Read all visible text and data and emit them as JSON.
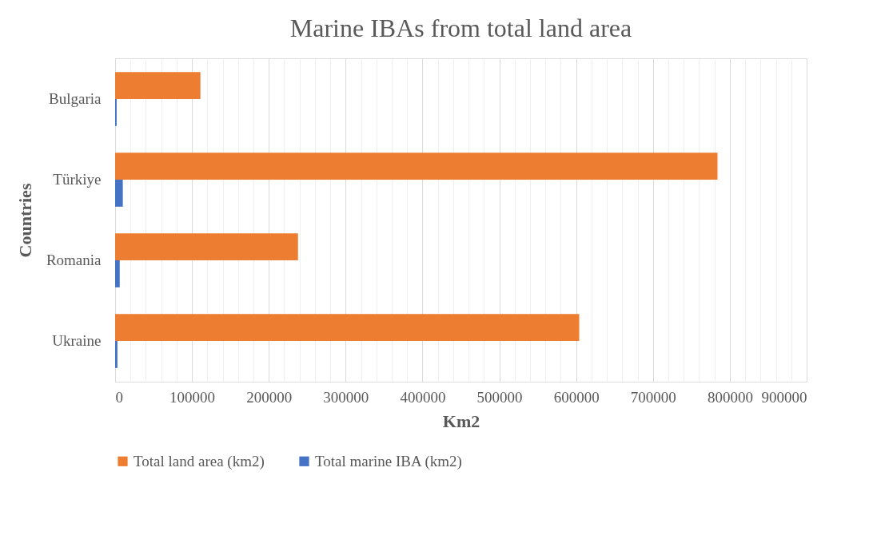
{
  "chart_data": {
    "type": "bar",
    "orientation": "horizontal",
    "title": "Marine IBAs from total land area",
    "xlabel": "Km2",
    "ylabel": "Countries",
    "categories": [
      "Bulgaria",
      "Türkiye",
      "Romania",
      "Ukraine"
    ],
    "series": [
      {
        "name": "Total land area (km2)",
        "color": "#ed7d31",
        "values": [
          111000,
          784000,
          238000,
          604000
        ]
      },
      {
        "name": "Total marine IBA (km2)",
        "color": "#4472c4",
        "values": [
          2000,
          10000,
          6000,
          3000
        ]
      }
    ],
    "xlim": [
      0,
      900000
    ],
    "xticks": [
      0,
      {
        "value": 20000,
        "label": null
      },
      {
        "value": 40000,
        "label": null
      },
      {
        "value": 60000,
        "label": null
      },
      {
        "value": 80000,
        "label": null
      },
      100000,
      {
        "value": 120000,
        "label": null
      },
      {
        "value": 140000,
        "label": null
      },
      {
        "value": 160000,
        "label": null
      },
      {
        "value": 180000,
        "label": null
      },
      200000,
      {
        "value": 220000,
        "label": null
      },
      {
        "value": 240000,
        "label": null
      },
      {
        "value": 260000,
        "label": null
      },
      {
        "value": 280000,
        "label": null
      },
      300000,
      {
        "value": 320000,
        "label": null
      },
      {
        "value": 340000,
        "label": null
      },
      {
        "value": 360000,
        "label": null
      },
      {
        "value": 380000,
        "label": null
      },
      400000,
      {
        "value": 420000,
        "label": null
      },
      {
        "value": 440000,
        "label": null
      },
      {
        "value": 460000,
        "label": null
      },
      {
        "value": 480000,
        "label": null
      },
      500000,
      {
        "value": 520000,
        "label": null
      },
      {
        "value": 540000,
        "label": null
      },
      {
        "value": 560000,
        "label": null
      },
      {
        "value": 580000,
        "label": null
      },
      600000,
      {
        "value": 620000,
        "label": null
      },
      {
        "value": 640000,
        "label": null
      },
      {
        "value": 660000,
        "label": null
      },
      {
        "value": 680000,
        "label": null
      },
      700000,
      {
        "value": 720000,
        "label": null
      },
      {
        "value": 740000,
        "label": null
      },
      {
        "value": 760000,
        "label": null
      },
      {
        "value": 780000,
        "label": null
      },
      800000,
      {
        "value": 820000,
        "label": null
      },
      {
        "value": 840000,
        "label": null
      },
      {
        "value": 860000,
        "label": null
      },
      {
        "value": 880000,
        "label": null
      },
      900000
    ],
    "grid": "x",
    "legend": "bottom"
  }
}
